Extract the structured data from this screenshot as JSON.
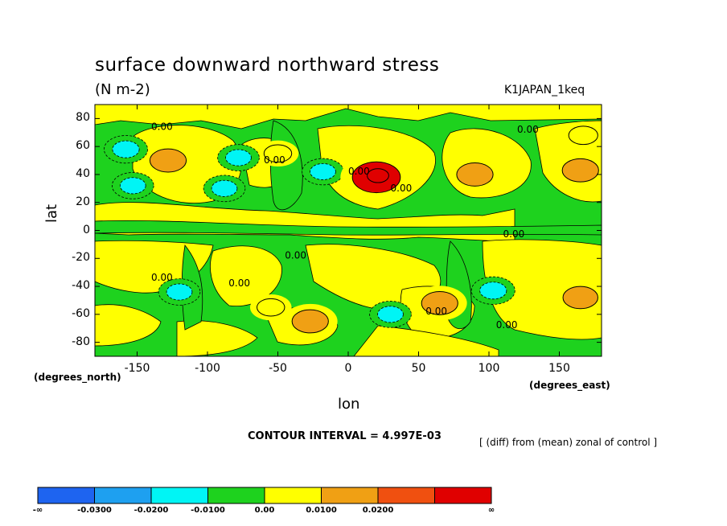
{
  "title": "surface downward northward stress",
  "units": "(N m-2)",
  "run_name": "K1JAPAN_1keq",
  "contour_interval": "CONTOUR INTERVAL = 4.997E-03",
  "description": "[ (diff) from (mean) zonal of control ]",
  "contour_zero_label": "0.00",
  "colors": {
    "neg3": "#1e64f0",
    "neg2": "#1ea0f0",
    "neg1": "#00f5f5",
    "neg0": "#1ed21e",
    "pos0": "#ffff00",
    "pos1": "#f0a014",
    "pos2": "#f05010",
    "pos3": "#e00000"
  },
  "chart_data": {
    "type": "heatmap",
    "title": "surface downward northward stress",
    "xlabel": "lon",
    "ylabel": "lat",
    "x_units": "(degrees_east)",
    "y_units": "(degrees_north)",
    "xlim": [
      -180,
      180
    ],
    "ylim": [
      -90,
      90
    ],
    "x_ticks": [
      -150,
      -100,
      -50,
      0,
      50,
      100,
      150
    ],
    "y_ticks": [
      80,
      60,
      40,
      20,
      0,
      -20,
      -40,
      -60,
      -80
    ],
    "levels": [
      "-∞",
      "-0.0300",
      "-0.0200",
      "-0.0100",
      "0.00",
      "0.0100",
      "0.0200",
      "∞"
    ],
    "features": [
      {
        "lon": -128,
        "lat": 50,
        "value": 0.014
      },
      {
        "lon": -50,
        "lat": 55,
        "value": 0.008
      },
      {
        "lon": -158,
        "lat": 58,
        "value": -0.012
      },
      {
        "lon": -78,
        "lat": 52,
        "value": -0.011
      },
      {
        "lon": -88,
        "lat": 30,
        "value": -0.011
      },
      {
        "lon": -153,
        "lat": 32,
        "value": -0.011
      },
      {
        "lon": -18,
        "lat": 42,
        "value": -0.011
      },
      {
        "lon": 20,
        "lat": 38,
        "value": 0.022
      },
      {
        "lon": 90,
        "lat": 40,
        "value": 0.014
      },
      {
        "lon": 165,
        "lat": 43,
        "value": 0.014
      },
      {
        "lon": 167,
        "lat": 68,
        "value": 0.009
      },
      {
        "lon": 103,
        "lat": -43,
        "value": -0.012
      },
      {
        "lon": 30,
        "lat": -60,
        "value": -0.011
      },
      {
        "lon": -120,
        "lat": -44,
        "value": -0.011
      },
      {
        "lon": 65,
        "lat": -52,
        "value": 0.014
      },
      {
        "lon": 165,
        "lat": -48,
        "value": 0.013
      },
      {
        "lon": -27,
        "lat": -65,
        "value": 0.014
      },
      {
        "lon": -55,
        "lat": -55,
        "value": 0.008
      }
    ]
  }
}
